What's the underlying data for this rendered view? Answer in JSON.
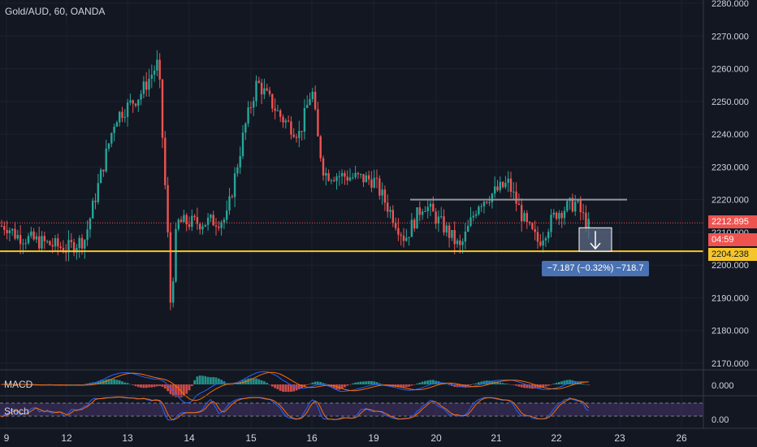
{
  "header": {
    "title": "Gold/AUD, 60, OANDA"
  },
  "panes": {
    "macd_label": "MACD",
    "stoch_label": "Stoch"
  },
  "tags": {
    "last_price": "2212.895",
    "countdown": "04:59",
    "support_price": "2204.238",
    "macd_value": "0.000",
    "stoch_value": "0.00"
  },
  "measure": {
    "text": "−7.187 (−0.32%) −718.7"
  },
  "colors": {
    "background": "#131722",
    "up": "#26a69a",
    "down": "#ef5350",
    "support_line": "#f5c62b",
    "resistance_line": "#9598a1",
    "measure_box": "#4a72b2",
    "macd_line": "#2962ff",
    "signal_line": "#ff6d00",
    "stoch_k": "#2962ff",
    "stoch_d": "#ff6d00",
    "stoch_band": "#7e57c2"
  },
  "chart_data": {
    "type": "candlestick",
    "symbol": "Gold/AUD",
    "interval": "60",
    "source": "OANDA",
    "y_ticks": [
      "2280.000",
      "2270.000",
      "2260.000",
      "2250.000",
      "2240.000",
      "2230.000",
      "2220.000",
      "2210.000",
      "2200.000",
      "2190.000",
      "2180.000",
      "2170.000"
    ],
    "ylim": [
      2168,
      2281
    ],
    "x_ticks": [
      "9",
      "12",
      "13",
      "14",
      "15",
      "16",
      "19",
      "20",
      "21",
      "22",
      "23",
      "26"
    ],
    "support_level": 2204.238,
    "resistance_level": 2220.0,
    "last_price": 2212.895,
    "macd_ticks": [
      "0.000"
    ],
    "stoch_ticks": [
      "0.00"
    ],
    "price_path": [
      {
        "date": "9",
        "price": 2212
      },
      {
        "date": "9.5",
        "price": 2209
      },
      {
        "date": "12",
        "price": 2205
      },
      {
        "date": "12.3",
        "price": 2208
      },
      {
        "date": "12.5",
        "price": 2223
      },
      {
        "date": "12.8",
        "price": 2245
      },
      {
        "date": "13.2",
        "price": 2252
      },
      {
        "date": "13.5",
        "price": 2262
      },
      {
        "date": "13.65",
        "price": 2210
      },
      {
        "date": "13.7",
        "price": 2187
      },
      {
        "date": "13.8",
        "price": 2213
      },
      {
        "date": "14.2",
        "price": 2213
      },
      {
        "date": "14.6",
        "price": 2214
      },
      {
        "date": "14.9",
        "price": 2242
      },
      {
        "date": "15.1",
        "price": 2256
      },
      {
        "date": "15.5",
        "price": 2245
      },
      {
        "date": "15.8",
        "price": 2240
      },
      {
        "date": "16.0",
        "price": 2254
      },
      {
        "date": "16.3",
        "price": 2238
      },
      {
        "date": "16.6",
        "price": 2228
      },
      {
        "date": "19.0",
        "price": 2226
      },
      {
        "date": "19.5",
        "price": 2208
      },
      {
        "date": "19.8",
        "price": 2219
      },
      {
        "date": "20.2",
        "price": 2210
      },
      {
        "date": "20.4",
        "price": 2205
      },
      {
        "date": "20.7",
        "price": 2219
      },
      {
        "date": "21.2",
        "price": 2225
      },
      {
        "date": "21.5",
        "price": 2212
      },
      {
        "date": "21.7",
        "price": 2207
      },
      {
        "date": "22.0",
        "price": 2216
      },
      {
        "date": "22.3",
        "price": 2219
      },
      {
        "date": "22.5",
        "price": 2212
      }
    ]
  }
}
